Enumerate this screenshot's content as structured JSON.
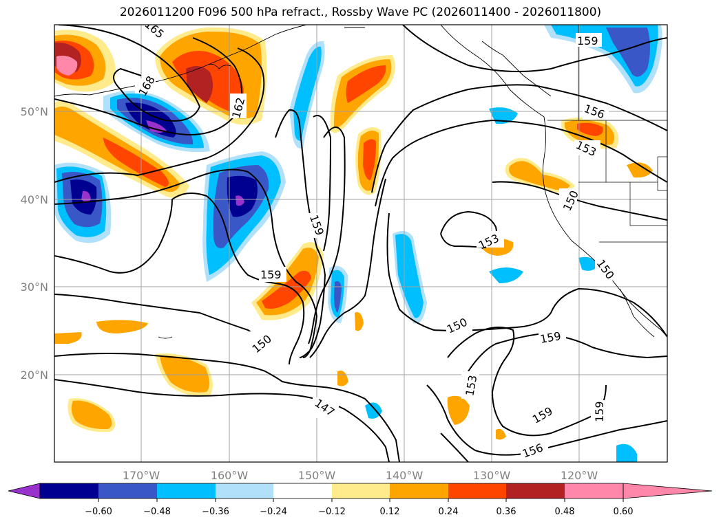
{
  "title": "2026011200 F096 500 hPa refract., Rossby Wave PC (2026011400 - 2026011800)",
  "axes": {
    "lon_ticks": [
      "170°W",
      "160°W",
      "150°W",
      "140°W",
      "130°W",
      "120°W"
    ],
    "lat_ticks": [
      "50°N",
      "40°N",
      "30°N",
      "20°N"
    ]
  },
  "colorbar": {
    "labels": [
      "−0.60",
      "−0.48",
      "−0.36",
      "−0.24",
      "−0.12",
      "0.12",
      "0.24",
      "0.36",
      "0.48",
      "0.60"
    ],
    "colors": [
      "#9932cc",
      "#000090",
      "#3a57c8",
      "#00bfff",
      "#b0e0fa",
      "#ffffff",
      "#ffeb8c",
      "#ffa500",
      "#ff4500",
      "#b22222",
      "#ff88aa"
    ]
  },
  "contour_labels": [
    "165",
    "168",
    "162",
    "159",
    "156",
    "153",
    "150",
    "159",
    "159",
    "153",
    "150",
    "150",
    "150",
    "159",
    "153",
    "147",
    "159",
    "156",
    "159"
  ]
}
